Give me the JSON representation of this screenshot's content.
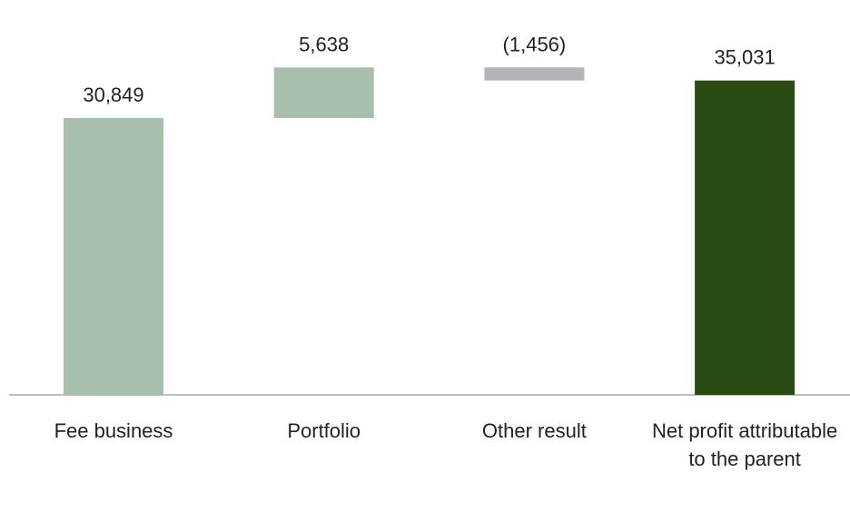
{
  "chart_data": {
    "type": "waterfall",
    "categories": [
      "Fee business",
      "Portfolio",
      "Other result",
      "Net profit attributable to the parent"
    ],
    "values": [
      30849,
      5638,
      -1456,
      35031
    ],
    "value_labels": [
      "30,849",
      "5,638",
      "(1,456)",
      "35,031"
    ],
    "colors": [
      "#a8bfad",
      "#a8bfad",
      "#b3b3b8",
      "#2a4b14"
    ],
    "totals": [
      3
    ],
    "ylim": [
      0,
      44000
    ]
  }
}
